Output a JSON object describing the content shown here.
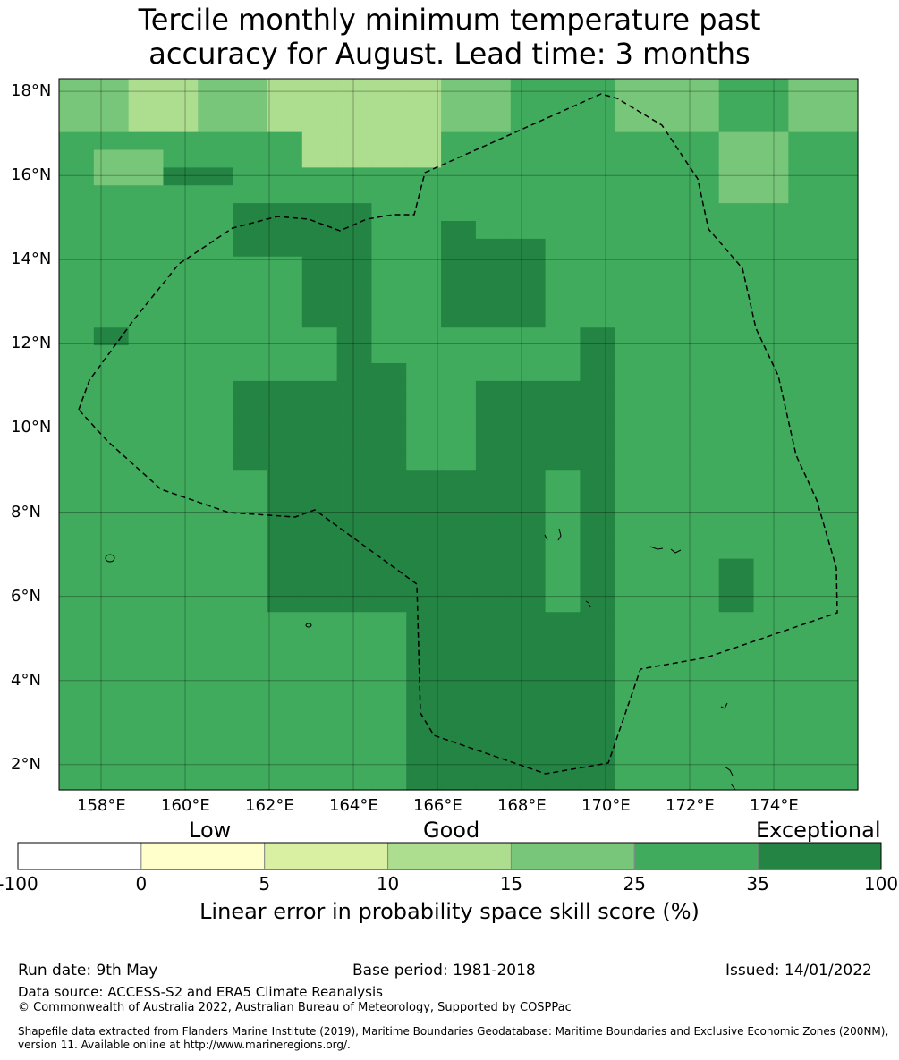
{
  "title": {
    "line1": "Tercile monthly minimum temperature past",
    "line2": "accuracy for August. Lead time: 3 months"
  },
  "map": {
    "lat_labels": [
      "18°N",
      "16°N",
      "14°N",
      "12°N",
      "10°N",
      "8°N",
      "6°N",
      "4°N",
      "2°N"
    ],
    "lon_labels": [
      "158°E",
      "160°E",
      "162°E",
      "164°E",
      "166°E",
      "168°E",
      "170°E",
      "172°E",
      "174°E"
    ],
    "lat_range": [
      1.4,
      18.3
    ],
    "lon_range": [
      157.0,
      176.0
    ],
    "grid": true,
    "boundary_style": "dashed",
    "skill_grid_rows_north_to_south": [
      "44334433333445554445544",
      "44334433333445554445544",
      "44334433333445554445544",
      "55555553333555555554455",
      "54455553333555555554455",
      "54466555555555555554455",
      "55555555555555555554455",
      "55555666655555555555555",
      "55555666655655555555555",
      "55555666655666555555555",
      "55555556655666555555555",
      "55555556655666555555555",
      "55555556655666555555555",
      "55555556655666555555555",
      "56555555655555565555555",
      "55555555655555565555555",
      "55555555665555565555555",
      "55555666665566665555555",
      "55555666665566665555555",
      "55555666665566665555555",
      "55555666665566665555555",
      "55555666665566665555555",
      "55555566666666565555555",
      "55555566666666565555555",
      "55555566666666565555555",
      "55555566666666565555555",
      "55555566666666565555555",
      "55555566666666565556555",
      "55555566666666565556555",
      "55555566666666565556555",
      "55555555556666665555555",
      "55555555556666665555555",
      "55555555556666665555555",
      "55555555556666665555555",
      "55555555556666665555555",
      "55555555556666665555555",
      "55555555556666665555555",
      "55555555556666665555555",
      "55555555556666665555555",
      "55555555556666665555555"
    ]
  },
  "colorbar": {
    "words": {
      "low": "Low",
      "good": "Good",
      "exceptional": "Exceptional"
    },
    "ticks": [
      "-100",
      "0",
      "5",
      "10",
      "15",
      "25",
      "35",
      "100"
    ],
    "colors": [
      "#ffffff",
      "#ffffcc",
      "#d9f0a3",
      "#addd8e",
      "#78c679",
      "#41ab5d",
      "#238443"
    ],
    "title": "Linear error in probability space skill score (%)"
  },
  "footer": {
    "run_date": "Run date: 9th May",
    "base_period": "Base period: 1981-2018",
    "issued": "Issued: 14/01/2022",
    "data_source": "Data source: ACCESS-S2 and ERA5 Climate Reanalysis",
    "copyright": "© Commonwealth of Australia 2022, Australian Bureau of Meteorology, Supported by COSPPac",
    "shapefile": "Shapefile data extracted from Flanders Marine Institute (2019), Maritime Boundaries Geodatabase: Maritime Boundaries and Exclusive Economic Zones (200NM), version 11. Available online at http://www.marineregions.org/."
  }
}
